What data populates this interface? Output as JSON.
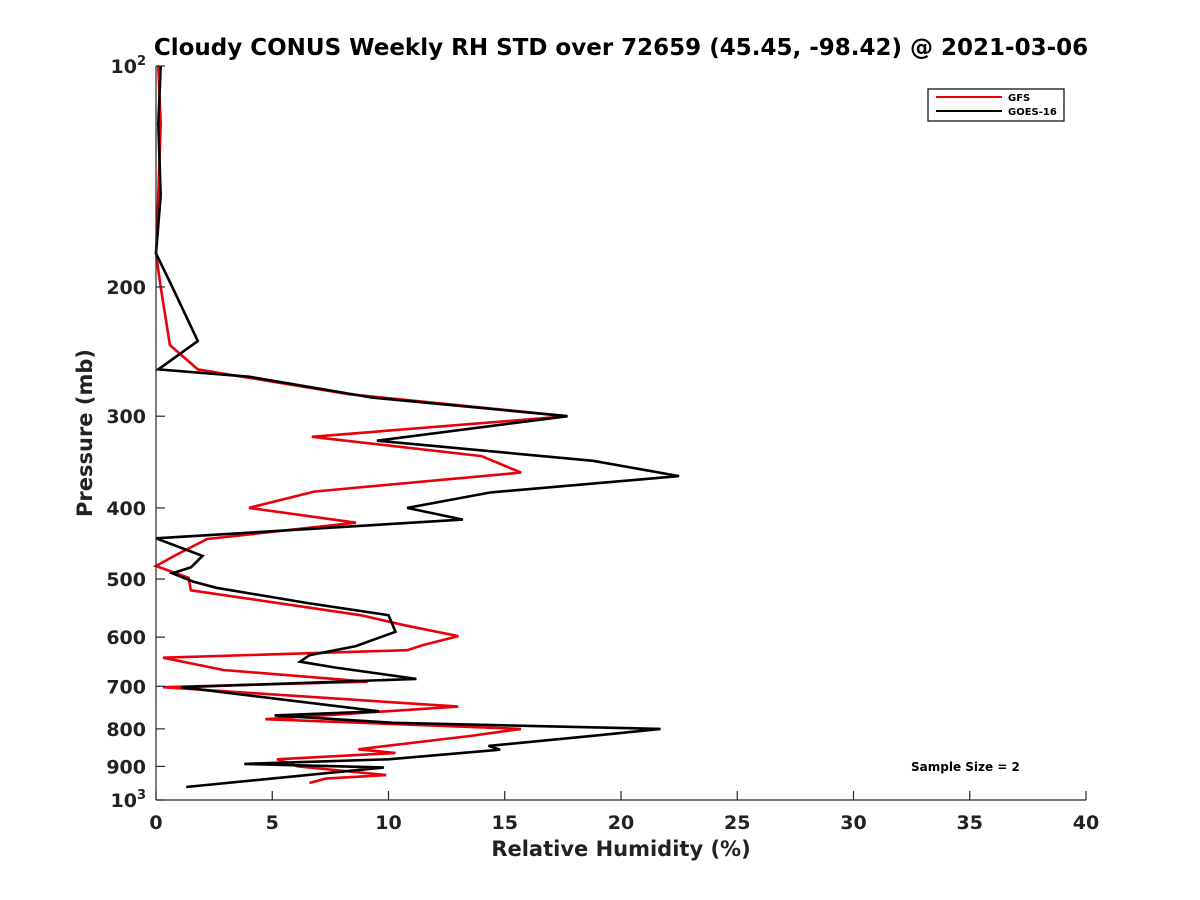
{
  "chart_data": {
    "type": "line",
    "title": "Cloudy CONUS Weekly RH STD over 72659 (45.45, -98.42) @ 2021-03-06",
    "xlabel": "Relative Humidity (%)",
    "ylabel": "Pressure (mb)",
    "xlim": [
      0,
      40
    ],
    "ylim": [
      1000,
      100
    ],
    "y_scale": "log",
    "y_reversed": true,
    "xticks": [
      "0",
      "5",
      "10",
      "15",
      "20",
      "25",
      "30",
      "35",
      "40"
    ],
    "yticks": [
      {
        "value": 100,
        "label": "10",
        "sup": "2"
      },
      {
        "value": 200,
        "label": "200",
        "sup": ""
      },
      {
        "value": 300,
        "label": "300",
        "sup": ""
      },
      {
        "value": 400,
        "label": "400",
        "sup": ""
      },
      {
        "value": 500,
        "label": "500",
        "sup": ""
      },
      {
        "value": 600,
        "label": "600",
        "sup": ""
      },
      {
        "value": 700,
        "label": "700",
        "sup": ""
      },
      {
        "value": 800,
        "label": "800",
        "sup": ""
      },
      {
        "value": 900,
        "label": "900",
        "sup": ""
      },
      {
        "value": 1000,
        "label": "10",
        "sup": "3"
      }
    ],
    "grid": false,
    "legend_position": "top-right",
    "annotation": "Sample Size = 2",
    "series": [
      {
        "name": "GFS",
        "color": "#e8000b",
        "points": [
          [
            0.1,
            100
          ],
          [
            0.2,
            120
          ],
          [
            0.1,
            150
          ],
          [
            0.0,
            180
          ],
          [
            0.2,
            200
          ],
          [
            0.6,
            240
          ],
          [
            1.8,
            259
          ],
          [
            8.3,
            280
          ],
          [
            17.7,
            300
          ],
          [
            6.7,
            320
          ],
          [
            14.0,
            340
          ],
          [
            15.7,
            358
          ],
          [
            6.8,
            380
          ],
          [
            4.0,
            400
          ],
          [
            8.6,
            419
          ],
          [
            2.2,
            441
          ],
          [
            0.9,
            463
          ],
          [
            0.0,
            480
          ],
          [
            1.4,
            498
          ],
          [
            1.5,
            518
          ],
          [
            8.8,
            560
          ],
          [
            10.7,
            578
          ],
          [
            13.0,
            598
          ],
          [
            11.5,
            615
          ],
          [
            10.8,
            625
          ],
          [
            0.3,
            640
          ],
          [
            2.9,
            665
          ],
          [
            9.1,
            690
          ],
          [
            0.3,
            702
          ],
          [
            13.0,
            746
          ],
          [
            4.7,
            776
          ],
          [
            15.7,
            800
          ],
          [
            13.5,
            818
          ],
          [
            8.7,
            853
          ],
          [
            10.3,
            863
          ],
          [
            5.2,
            880
          ],
          [
            6.1,
            900
          ],
          [
            9.9,
            925
          ],
          [
            7.3,
            935
          ],
          [
            6.6,
            948
          ]
        ]
      },
      {
        "name": "GOES-16",
        "color": "#000000",
        "points": [
          [
            0.2,
            100
          ],
          [
            0.1,
            120
          ],
          [
            0.2,
            150
          ],
          [
            0.0,
            180
          ],
          [
            0.7,
            200
          ],
          [
            1.8,
            237
          ],
          [
            0.1,
            259
          ],
          [
            4.0,
            265
          ],
          [
            9.3,
            283
          ],
          [
            17.7,
            300
          ],
          [
            9.5,
            324
          ],
          [
            18.8,
            345
          ],
          [
            22.5,
            362
          ],
          [
            14.4,
            381
          ],
          [
            10.8,
            400
          ],
          [
            13.2,
            415
          ],
          [
            0.0,
            440
          ],
          [
            2.0,
            465
          ],
          [
            1.5,
            482
          ],
          [
            0.7,
            491
          ],
          [
            1.6,
            504
          ],
          [
            2.6,
            514
          ],
          [
            6.5,
            539
          ],
          [
            10.0,
            560
          ],
          [
            10.3,
            590
          ],
          [
            8.6,
            617
          ],
          [
            6.6,
            635
          ],
          [
            6.2,
            648
          ],
          [
            7.7,
            660
          ],
          [
            11.2,
            684
          ],
          [
            1.1,
            702
          ],
          [
            9.6,
            757
          ],
          [
            5.1,
            767
          ],
          [
            10.2,
            785
          ],
          [
            21.7,
            800
          ],
          [
            18.9,
            817
          ],
          [
            14.3,
            844
          ],
          [
            14.8,
            854
          ],
          [
            10.0,
            880
          ],
          [
            3.8,
            893
          ],
          [
            9.8,
            903
          ],
          [
            1.3,
            960
          ]
        ]
      }
    ]
  }
}
